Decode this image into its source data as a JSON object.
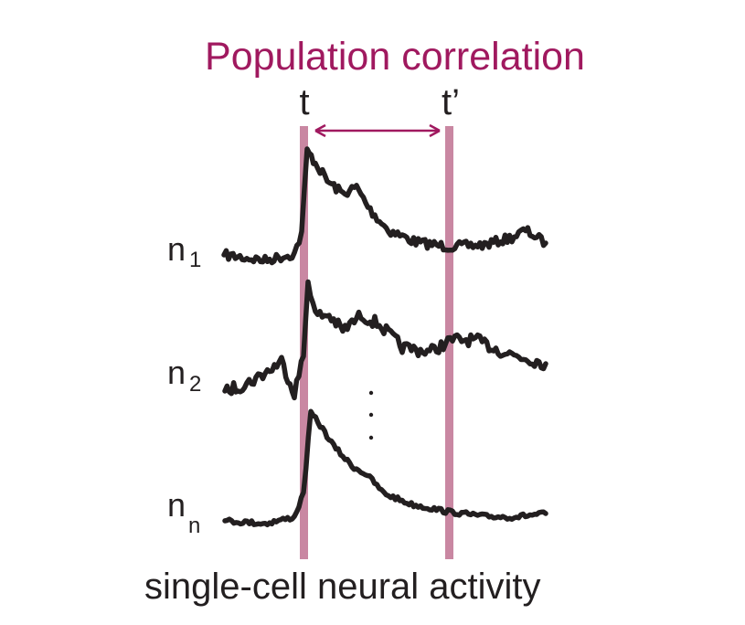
{
  "title": "Population correlation",
  "time_labels": {
    "t": "t",
    "t_prime": "t’"
  },
  "neurons": [
    {
      "base": "n",
      "sub": "1"
    },
    {
      "base": "n",
      "sub": "2"
    },
    {
      "base": "n",
      "sub": "n"
    }
  ],
  "ellipsis": "· · ·",
  "caption": "single-cell neural activity",
  "colors": {
    "accent": "#a0195f",
    "time_line": "#c987a2",
    "trace": "#231f20"
  }
}
